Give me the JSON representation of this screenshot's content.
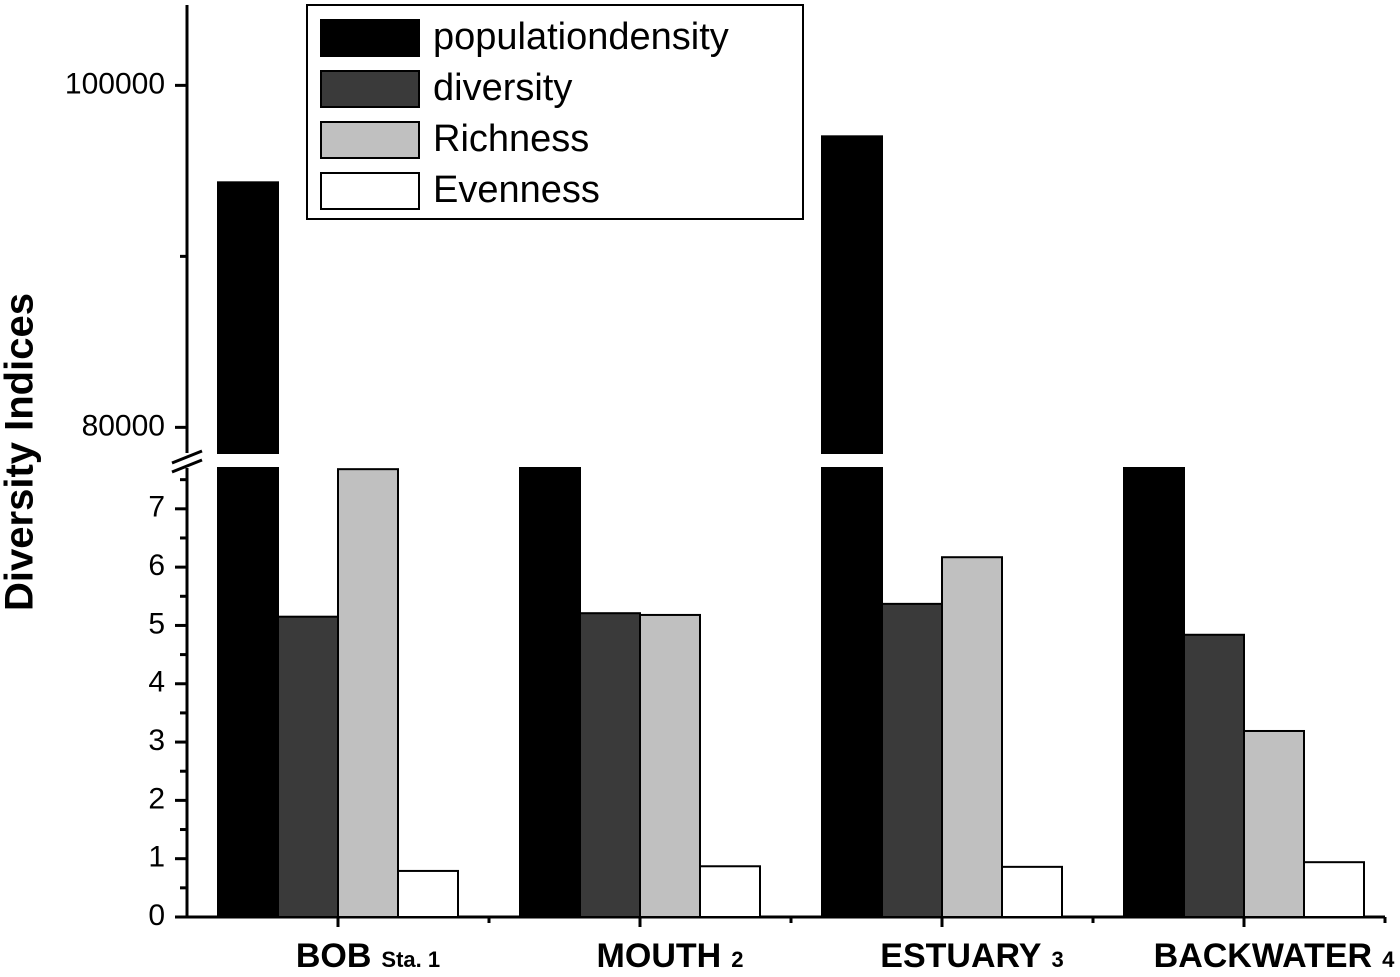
{
  "chart_data": {
    "type": "bar",
    "y_axis_label": "Diversity Indices",
    "categories": [
      "BOB",
      "MOUTH",
      "ESTUARY",
      "BACKWATER"
    ],
    "category_subscripts": [
      "Sta. 1",
      "2",
      "3",
      "4"
    ],
    "series": [
      {
        "name": "populationdensity",
        "color": "#000000",
        "values": [
          94330,
          78000,
          97020,
          78000
        ]
      },
      {
        "name": "diversity",
        "color": "#3a3a3a",
        "values": [
          5.15,
          5.21,
          5.37,
          4.84
        ]
      },
      {
        "name": "Richness",
        "color": "#c0c0c0",
        "values": [
          7.68,
          5.18,
          6.17,
          3.19
        ]
      },
      {
        "name": "Evenness",
        "color": "#ffffff",
        "values": [
          0.79,
          0.87,
          0.86,
          0.94
        ]
      }
    ],
    "ylim": [
      0,
      7.7
    ],
    "yticks": [
      0,
      1,
      2,
      3,
      4,
      5,
      6,
      7
    ],
    "yticks_minor": [
      0.5,
      1.5,
      2.5,
      3.5,
      4.5,
      5.5,
      6.5,
      7.5
    ],
    "ylim_upper": [
      78500,
      104700
    ],
    "yticks_upper": [
      80000,
      100000
    ],
    "yticks_upper_minor": [
      90000
    ],
    "legend": "upper-left"
  }
}
